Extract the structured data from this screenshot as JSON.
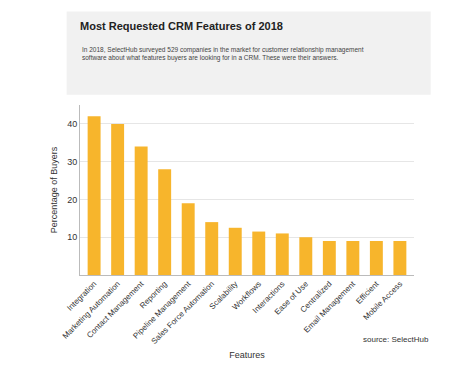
{
  "chart_data": {
    "type": "bar",
    "title": "Most Requested CRM Features of 2018",
    "subtitle": "In 2018, SelectHub surveyed 529 companies in the market for customer relationship management software about what features buyers are looking for in a CRM. These were their answers.",
    "x_label": "Features",
    "y_label": "Percentage of Buyers",
    "source": "source: SelectHub",
    "categories": [
      "Integration",
      "Marketing Automation",
      "Contact Management",
      "Reporting",
      "Pipeline Management",
      "Sales Force Automation",
      "Scalability",
      "Workflows",
      "Interactions",
      "Ease of Use",
      "Centralized",
      "Email Management",
      "Efficient",
      "Mobile Access"
    ],
    "values": [
      42,
      40,
      34,
      28,
      19,
      14,
      12.5,
      11.5,
      11,
      10,
      9,
      9,
      9,
      9
    ],
    "color": "#f7b52c",
    "ylim": [
      0,
      45
    ],
    "yticks": [
      10,
      20,
      30,
      40
    ],
    "grid": true
  }
}
